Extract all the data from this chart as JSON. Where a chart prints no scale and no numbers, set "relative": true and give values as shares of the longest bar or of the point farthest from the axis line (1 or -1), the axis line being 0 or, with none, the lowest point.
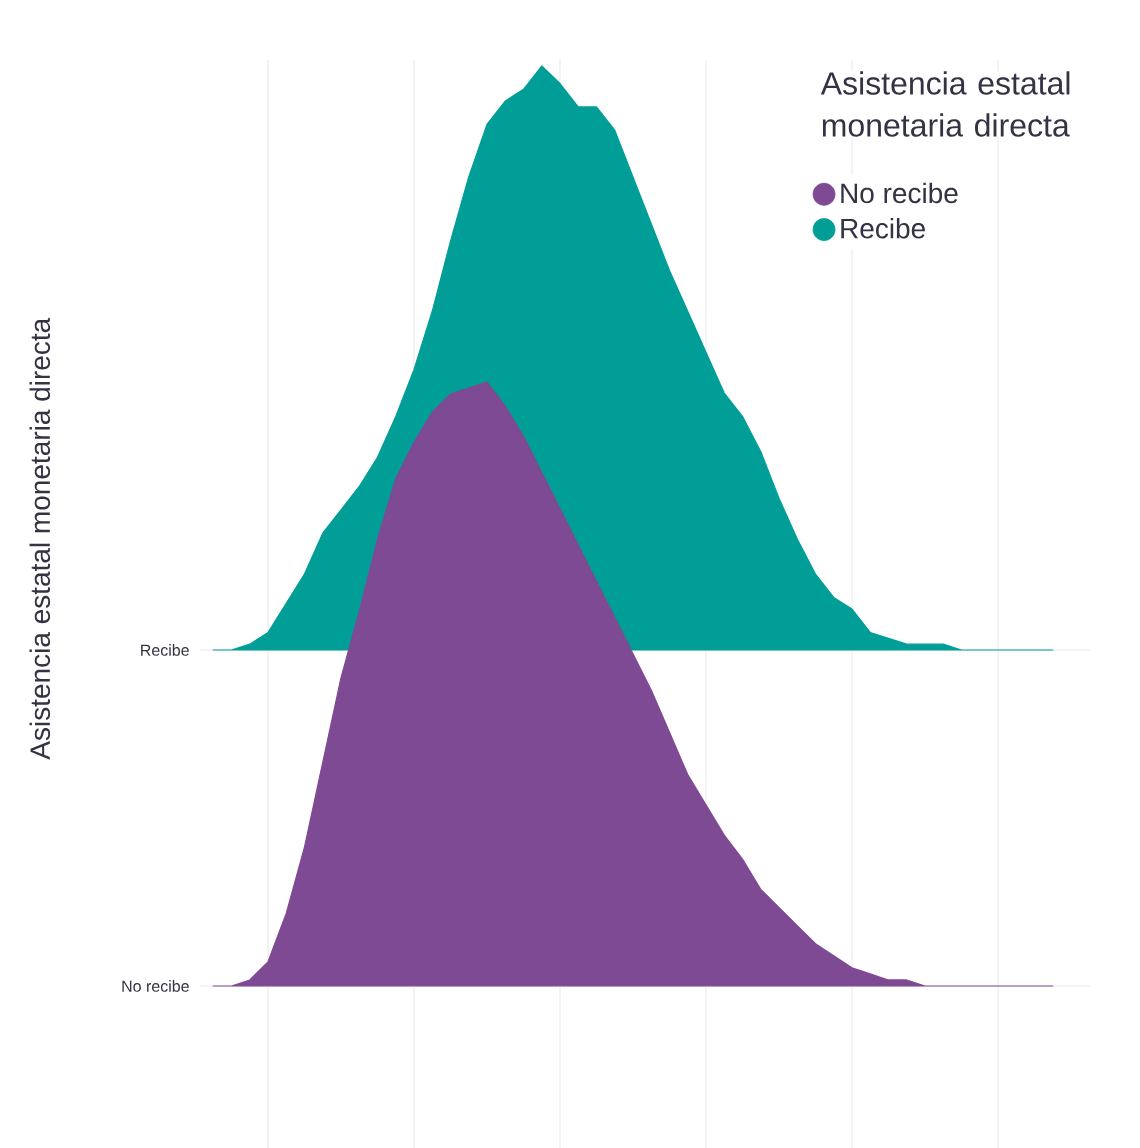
{
  "chart_data": [
    {
      "type": "area",
      "relative": true,
      "ylabel": "Asistencia estatal monetaria directa",
      "legend_title": "Asistencia estatal monetaria directa",
      "legend": "top right",
      "categories": [
        null,
        null,
        null,
        null,
        null,
        null,
        null,
        null,
        null,
        null,
        null,
        null,
        null,
        null,
        null,
        null,
        null,
        null,
        null,
        null,
        null,
        null,
        null,
        null,
        null,
        null,
        null,
        null,
        null,
        null,
        null,
        null,
        null,
        null,
        null,
        null,
        null,
        null,
        null,
        null,
        null,
        null,
        null,
        null,
        null,
        null,
        null
      ],
      "series": [
        {
          "name": "No recibe",
          "color": "#7e4a94",
          "values": [
            0,
            0,
            0.01,
            0.04,
            0.12,
            0.23,
            0.37,
            0.51,
            0.62,
            0.74,
            0.84,
            0.9,
            0.95,
            0.98,
            0.99,
            1,
            0.96,
            0.91,
            0.85,
            0.79,
            0.73,
            0.67,
            0.61,
            0.55,
            0.49,
            0.42,
            0.35,
            0.3,
            0.25,
            0.21,
            0.16,
            0.13,
            0.1,
            0.07,
            0.05,
            0.03,
            0.02,
            0.01,
            0.01,
            0,
            0,
            0,
            0,
            0,
            0,
            0,
            0
          ]
        }
      ],
      "annotations": [
        "No recibe"
      ]
    },
    {
      "type": "area",
      "relative": true,
      "grid": true,
      "categories": [
        null,
        null,
        null,
        null,
        null,
        null,
        null,
        null,
        null,
        null,
        null,
        null,
        null,
        null,
        null,
        null,
        null,
        null,
        null,
        null,
        null,
        null,
        null,
        null,
        null,
        null,
        null,
        null,
        null,
        null,
        null,
        null,
        null,
        null,
        null,
        null,
        null,
        null,
        null,
        null,
        null,
        null,
        null,
        null,
        null,
        null,
        null
      ],
      "series": [
        {
          "name": "Recibe",
          "color": "#009e96",
          "values": [
            0,
            0,
            0.01,
            0.03,
            0.08,
            0.13,
            0.2,
            0.24,
            0.28,
            0.33,
            0.4,
            0.48,
            0.58,
            0.7,
            0.81,
            0.9,
            0.94,
            0.96,
            1,
            0.97,
            0.93,
            0.93,
            0.89,
            0.81,
            0.73,
            0.65,
            0.58,
            0.51,
            0.44,
            0.4,
            0.34,
            0.26,
            0.19,
            0.13,
            0.09,
            0.07,
            0.03,
            0.02,
            0.01,
            0.01,
            0.01,
            0,
            0,
            0,
            0,
            0,
            0
          ]
        }
      ],
      "annotations": [
        "Recibe"
      ]
    }
  ]
}
